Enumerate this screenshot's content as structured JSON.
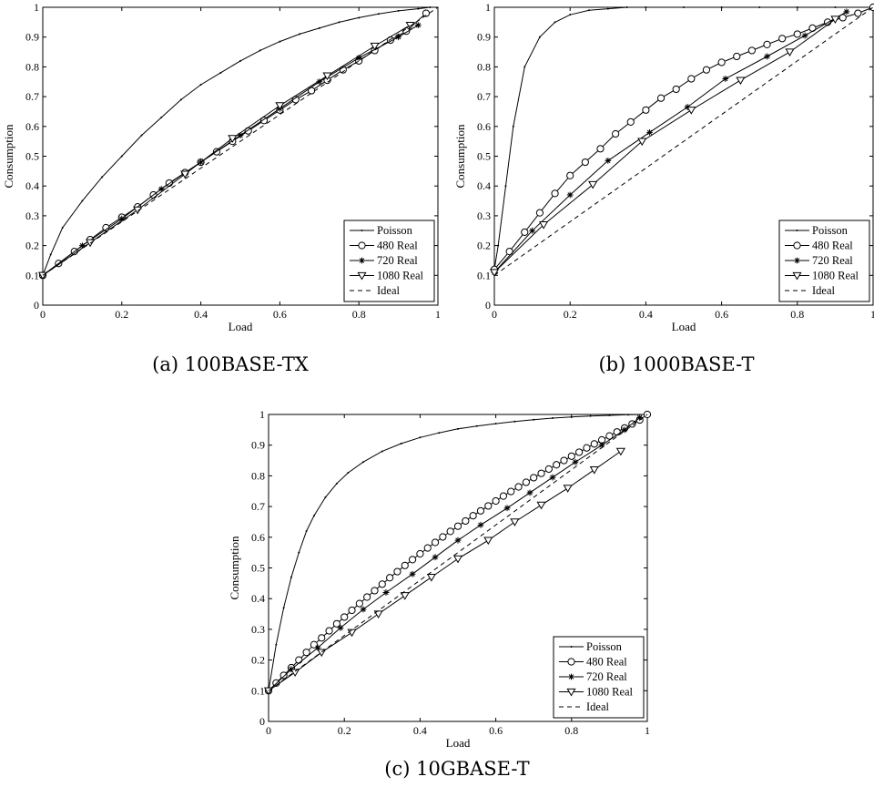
{
  "chart_data": [
    {
      "type": "line",
      "caption": "(a) 100BASE-TX",
      "xlabel": "Load",
      "ylabel": "Consumption",
      "xlim": [
        0,
        1
      ],
      "ylim": [
        0,
        1
      ],
      "xticks": [
        "0",
        "0.2",
        "0.4",
        "0.6",
        "0.8",
        "1"
      ],
      "yticks": [
        "0",
        "0.1",
        "0.2",
        "0.3",
        "0.4",
        "0.5",
        "0.6",
        "0.7",
        "0.8",
        "0.9",
        "1"
      ],
      "legend_position": "bottom-right",
      "series": [
        {
          "name": "Poisson",
          "marker": "dot",
          "dash": "solid",
          "x": [
            0,
            0.02,
            0.05,
            0.1,
            0.15,
            0.2,
            0.25,
            0.3,
            0.35,
            0.4,
            0.45,
            0.5,
            0.55,
            0.6,
            0.65,
            0.7,
            0.75,
            0.8,
            0.85,
            0.9,
            0.95,
            0.98
          ],
          "y": [
            0.1,
            0.17,
            0.26,
            0.35,
            0.43,
            0.5,
            0.57,
            0.63,
            0.69,
            0.74,
            0.78,
            0.82,
            0.855,
            0.885,
            0.91,
            0.93,
            0.95,
            0.965,
            0.978,
            0.988,
            0.995,
            1.0
          ]
        },
        {
          "name": "480 Real",
          "marker": "circle",
          "dash": "solid",
          "x": [
            0,
            0.04,
            0.08,
            0.12,
            0.16,
            0.2,
            0.24,
            0.28,
            0.32,
            0.36,
            0.4,
            0.44,
            0.48,
            0.52,
            0.56,
            0.6,
            0.64,
            0.68,
            0.72,
            0.76,
            0.8,
            0.84,
            0.88,
            0.92,
            0.97
          ],
          "y": [
            0.1,
            0.14,
            0.18,
            0.22,
            0.26,
            0.295,
            0.33,
            0.37,
            0.41,
            0.445,
            0.48,
            0.515,
            0.55,
            0.585,
            0.62,
            0.655,
            0.69,
            0.72,
            0.755,
            0.79,
            0.82,
            0.855,
            0.89,
            0.92,
            0.98
          ]
        },
        {
          "name": "720 Real",
          "marker": "star",
          "dash": "solid",
          "x": [
            0,
            0.1,
            0.2,
            0.3,
            0.4,
            0.5,
            0.6,
            0.7,
            0.8,
            0.9,
            0.95
          ],
          "y": [
            0.1,
            0.2,
            0.29,
            0.39,
            0.48,
            0.57,
            0.66,
            0.75,
            0.83,
            0.9,
            0.94
          ]
        },
        {
          "name": "1080 Real",
          "marker": "triangle",
          "dash": "solid",
          "x": [
            0,
            0.12,
            0.24,
            0.36,
            0.48,
            0.6,
            0.72,
            0.84,
            0.93
          ],
          "y": [
            0.1,
            0.21,
            0.32,
            0.44,
            0.56,
            0.67,
            0.77,
            0.87,
            0.94
          ]
        },
        {
          "name": "Ideal",
          "marker": "none",
          "dash": "dashed",
          "x": [
            0,
            1
          ],
          "y": [
            0.1,
            1.0
          ]
        }
      ]
    },
    {
      "type": "line",
      "caption": "(b) 1000BASE-T",
      "xlabel": "Load",
      "ylabel": "Consumption",
      "xlim": [
        0,
        1
      ],
      "ylim": [
        0,
        1
      ],
      "xticks": [
        "0",
        "0.2",
        "0.4",
        "0.6",
        "0.8",
        "1"
      ],
      "yticks": [
        "0",
        "0.1",
        "0.2",
        "0.3",
        "0.4",
        "0.5",
        "0.6",
        "0.7",
        "0.8",
        "0.9",
        "1"
      ],
      "legend_position": "bottom-right",
      "series": [
        {
          "name": "Poisson",
          "marker": "dot",
          "dash": "solid",
          "x": [
            0,
            0.01,
            0.03,
            0.05,
            0.08,
            0.12,
            0.16,
            0.2,
            0.25,
            0.3,
            0.35,
            0.4,
            0.5,
            0.6,
            0.7,
            0.8,
            0.9,
            1.0
          ],
          "y": [
            0.12,
            0.2,
            0.4,
            0.6,
            0.8,
            0.9,
            0.95,
            0.975,
            0.99,
            0.995,
            1.0,
            1.0,
            1.0,
            1.0,
            1.0,
            1.0,
            1.0,
            1.0
          ]
        },
        {
          "name": "480 Real",
          "marker": "circle",
          "dash": "solid",
          "x": [
            0,
            0.04,
            0.08,
            0.12,
            0.16,
            0.2,
            0.24,
            0.28,
            0.32,
            0.36,
            0.4,
            0.44,
            0.48,
            0.52,
            0.56,
            0.6,
            0.64,
            0.68,
            0.72,
            0.76,
            0.8,
            0.84,
            0.88,
            0.92,
            0.96,
            1.0
          ],
          "y": [
            0.12,
            0.18,
            0.245,
            0.31,
            0.375,
            0.435,
            0.48,
            0.525,
            0.575,
            0.615,
            0.655,
            0.695,
            0.725,
            0.76,
            0.79,
            0.815,
            0.835,
            0.855,
            0.875,
            0.895,
            0.91,
            0.93,
            0.95,
            0.965,
            0.98,
            1.0
          ]
        },
        {
          "name": "720 Real",
          "marker": "star",
          "dash": "solid",
          "x": [
            0,
            0.1,
            0.2,
            0.3,
            0.41,
            0.51,
            0.61,
            0.72,
            0.82,
            0.93
          ],
          "y": [
            0.11,
            0.25,
            0.37,
            0.485,
            0.58,
            0.665,
            0.76,
            0.835,
            0.905,
            0.985
          ]
        },
        {
          "name": "1080 Real",
          "marker": "triangle",
          "dash": "solid",
          "x": [
            0,
            0.13,
            0.26,
            0.39,
            0.52,
            0.65,
            0.78,
            0.9
          ],
          "y": [
            0.11,
            0.27,
            0.405,
            0.55,
            0.655,
            0.755,
            0.85,
            0.96
          ]
        },
        {
          "name": "Ideal",
          "marker": "none",
          "dash": "dashed",
          "x": [
            0,
            1
          ],
          "y": [
            0.1,
            1.0
          ]
        }
      ]
    },
    {
      "type": "line",
      "caption": "(c) 10GBASE-T",
      "xlabel": "Load",
      "ylabel": "Consumption",
      "xlim": [
        0,
        1
      ],
      "ylim": [
        0,
        1
      ],
      "xticks": [
        "0",
        "0.2",
        "0.4",
        "0.6",
        "0.8",
        "1"
      ],
      "yticks": [
        "0",
        "0.1",
        "0.2",
        "0.3",
        "0.4",
        "0.5",
        "0.6",
        "0.7",
        "0.8",
        "0.9",
        "1"
      ],
      "legend_position": "bottom-right",
      "series": [
        {
          "name": "Poisson",
          "marker": "dot",
          "dash": "solid",
          "x": [
            0,
            0.02,
            0.04,
            0.06,
            0.08,
            0.1,
            0.12,
            0.15,
            0.18,
            0.21,
            0.25,
            0.3,
            0.35,
            0.4,
            0.45,
            0.5,
            0.55,
            0.6,
            0.65,
            0.7,
            0.75,
            0.8,
            0.85,
            0.9,
            0.95,
            1.0
          ],
          "y": [
            0.1,
            0.25,
            0.37,
            0.47,
            0.55,
            0.62,
            0.67,
            0.73,
            0.775,
            0.81,
            0.845,
            0.88,
            0.905,
            0.925,
            0.94,
            0.953,
            0.962,
            0.97,
            0.977,
            0.983,
            0.988,
            0.992,
            0.995,
            0.997,
            0.999,
            1.0
          ]
        },
        {
          "name": "480 Real",
          "marker": "circle",
          "dash": "solid",
          "x": [
            0,
            0.02,
            0.04,
            0.06,
            0.08,
            0.1,
            0.12,
            0.14,
            0.16,
            0.18,
            0.2,
            0.22,
            0.24,
            0.26,
            0.28,
            0.3,
            0.32,
            0.34,
            0.36,
            0.38,
            0.4,
            0.42,
            0.44,
            0.46,
            0.48,
            0.5,
            0.52,
            0.54,
            0.56,
            0.58,
            0.6,
            0.62,
            0.64,
            0.66,
            0.68,
            0.7,
            0.72,
            0.74,
            0.76,
            0.78,
            0.8,
            0.82,
            0.84,
            0.86,
            0.88,
            0.9,
            0.92,
            0.94,
            0.96,
            0.98,
            1.0
          ],
          "y": [
            0.1,
            0.125,
            0.15,
            0.175,
            0.2,
            0.225,
            0.25,
            0.272,
            0.295,
            0.318,
            0.34,
            0.362,
            0.384,
            0.405,
            0.426,
            0.447,
            0.468,
            0.488,
            0.508,
            0.527,
            0.546,
            0.565,
            0.583,
            0.601,
            0.619,
            0.636,
            0.653,
            0.67,
            0.686,
            0.702,
            0.718,
            0.734,
            0.749,
            0.764,
            0.779,
            0.794,
            0.808,
            0.822,
            0.836,
            0.85,
            0.864,
            0.877,
            0.891,
            0.904,
            0.917,
            0.93,
            0.943,
            0.956,
            0.969,
            0.982,
            1.0
          ]
        },
        {
          "name": "720 Real",
          "marker": "star",
          "dash": "solid",
          "x": [
            0,
            0.06,
            0.13,
            0.19,
            0.25,
            0.31,
            0.38,
            0.44,
            0.5,
            0.56,
            0.63,
            0.69,
            0.75,
            0.81,
            0.88,
            0.94,
            0.98
          ],
          "y": [
            0.1,
            0.17,
            0.24,
            0.305,
            0.365,
            0.42,
            0.48,
            0.535,
            0.59,
            0.64,
            0.695,
            0.745,
            0.795,
            0.845,
            0.9,
            0.95,
            0.99
          ]
        },
        {
          "name": "1080 Real",
          "marker": "triangle",
          "dash": "solid",
          "x": [
            0,
            0.07,
            0.14,
            0.22,
            0.29,
            0.36,
            0.43,
            0.5,
            0.58,
            0.65,
            0.72,
            0.79,
            0.86,
            0.93
          ],
          "y": [
            0.1,
            0.16,
            0.225,
            0.29,
            0.35,
            0.41,
            0.47,
            0.53,
            0.59,
            0.65,
            0.705,
            0.76,
            0.82,
            0.88
          ]
        },
        {
          "name": "Ideal",
          "marker": "none",
          "dash": "dashed",
          "x": [
            0,
            1
          ],
          "y": [
            0.1,
            1.0
          ]
        }
      ]
    }
  ]
}
